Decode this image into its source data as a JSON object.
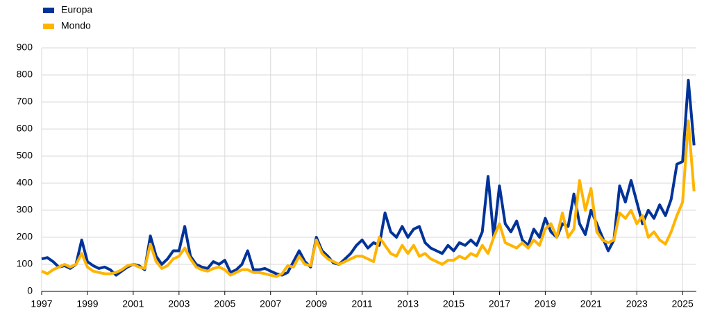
{
  "chart_data": {
    "type": "line",
    "x": [
      1997,
      1997.25,
      1997.5,
      1997.75,
      1998,
      1998.25,
      1998.5,
      1998.75,
      1999,
      1999.25,
      1999.5,
      1999.75,
      2000,
      2000.25,
      2000.5,
      2000.75,
      2001,
      2001.25,
      2001.5,
      2001.75,
      2002,
      2002.25,
      2002.5,
      2002.75,
      2003,
      2003.25,
      2003.5,
      2003.75,
      2004,
      2004.25,
      2004.5,
      2004.75,
      2005,
      2005.25,
      2005.5,
      2005.75,
      2006,
      2006.25,
      2006.5,
      2006.75,
      2007,
      2007.25,
      2007.5,
      2007.75,
      2008,
      2008.25,
      2008.5,
      2008.75,
      2009,
      2009.25,
      2009.5,
      2009.75,
      2010,
      2010.25,
      2010.5,
      2010.75,
      2011,
      2011.25,
      2011.5,
      2011.75,
      2012,
      2012.25,
      2012.5,
      2012.75,
      2013,
      2013.25,
      2013.5,
      2013.75,
      2014,
      2014.25,
      2014.5,
      2014.75,
      2015,
      2015.25,
      2015.5,
      2015.75,
      2016,
      2016.25,
      2016.5,
      2016.75,
      2017,
      2017.25,
      2017.5,
      2017.75,
      2018,
      2018.25,
      2018.5,
      2018.75,
      2019,
      2019.25,
      2019.5,
      2019.75,
      2020,
      2020.25,
      2020.5,
      2020.75,
      2021,
      2021.25,
      2021.5,
      2021.75,
      2022,
      2022.25,
      2022.5,
      2022.75,
      2023,
      2023.25,
      2023.5,
      2023.75,
      2024,
      2024.25,
      2024.5,
      2024.75,
      2025,
      2025.25,
      2025.5
    ],
    "series": [
      {
        "name": "Europa",
        "color": "#003399",
        "values": [
          120,
          125,
          110,
          90,
          95,
          85,
          100,
          190,
          110,
          95,
          85,
          90,
          80,
          60,
          75,
          90,
          100,
          95,
          80,
          205,
          130,
          100,
          120,
          150,
          150,
          240,
          130,
          100,
          90,
          85,
          110,
          100,
          115,
          70,
          80,
          100,
          150,
          80,
          80,
          85,
          75,
          65,
          60,
          70,
          110,
          150,
          110,
          90,
          200,
          150,
          130,
          105,
          100,
          120,
          140,
          170,
          190,
          160,
          180,
          170,
          290,
          220,
          200,
          240,
          200,
          230,
          240,
          180,
          160,
          150,
          140,
          170,
          150,
          180,
          170,
          190,
          170,
          220,
          425,
          200,
          390,
          250,
          220,
          260,
          190,
          170,
          230,
          200,
          270,
          220,
          200,
          250,
          240,
          360,
          250,
          210,
          300,
          250,
          200,
          150,
          190,
          390,
          330,
          410,
          330,
          250,
          300,
          270,
          320,
          280,
          340,
          470,
          480,
          780,
          540
        ]
      },
      {
        "name": "Mondo",
        "color": "#ffb400",
        "values": [
          75,
          65,
          80,
          90,
          100,
          90,
          100,
          140,
          90,
          75,
          70,
          65,
          65,
          70,
          80,
          95,
          100,
          90,
          85,
          175,
          110,
          85,
          95,
          120,
          130,
          160,
          120,
          90,
          80,
          75,
          85,
          90,
          80,
          60,
          70,
          80,
          80,
          70,
          70,
          65,
          60,
          55,
          65,
          95,
          90,
          130,
          100,
          95,
          190,
          140,
          120,
          110,
          100,
          110,
          120,
          130,
          130,
          120,
          110,
          200,
          170,
          140,
          130,
          170,
          140,
          170,
          130,
          140,
          120,
          110,
          100,
          115,
          115,
          130,
          120,
          140,
          130,
          170,
          140,
          200,
          250,
          180,
          170,
          160,
          180,
          160,
          190,
          170,
          230,
          250,
          200,
          290,
          200,
          230,
          410,
          300,
          380,
          220,
          190,
          180,
          190,
          290,
          270,
          300,
          250,
          280,
          200,
          220,
          190,
          175,
          220,
          280,
          330,
          630,
          370
        ]
      }
    ],
    "xlim": [
      1997,
      2025.6
    ],
    "xticks": [
      1997,
      1999,
      2001,
      2003,
      2005,
      2007,
      2009,
      2011,
      2013,
      2015,
      2017,
      2019,
      2021,
      2023,
      2025
    ],
    "ylim": [
      0,
      900
    ],
    "yticks": [
      0,
      100,
      200,
      300,
      400,
      500,
      600,
      700,
      800,
      900
    ],
    "grid": true
  }
}
